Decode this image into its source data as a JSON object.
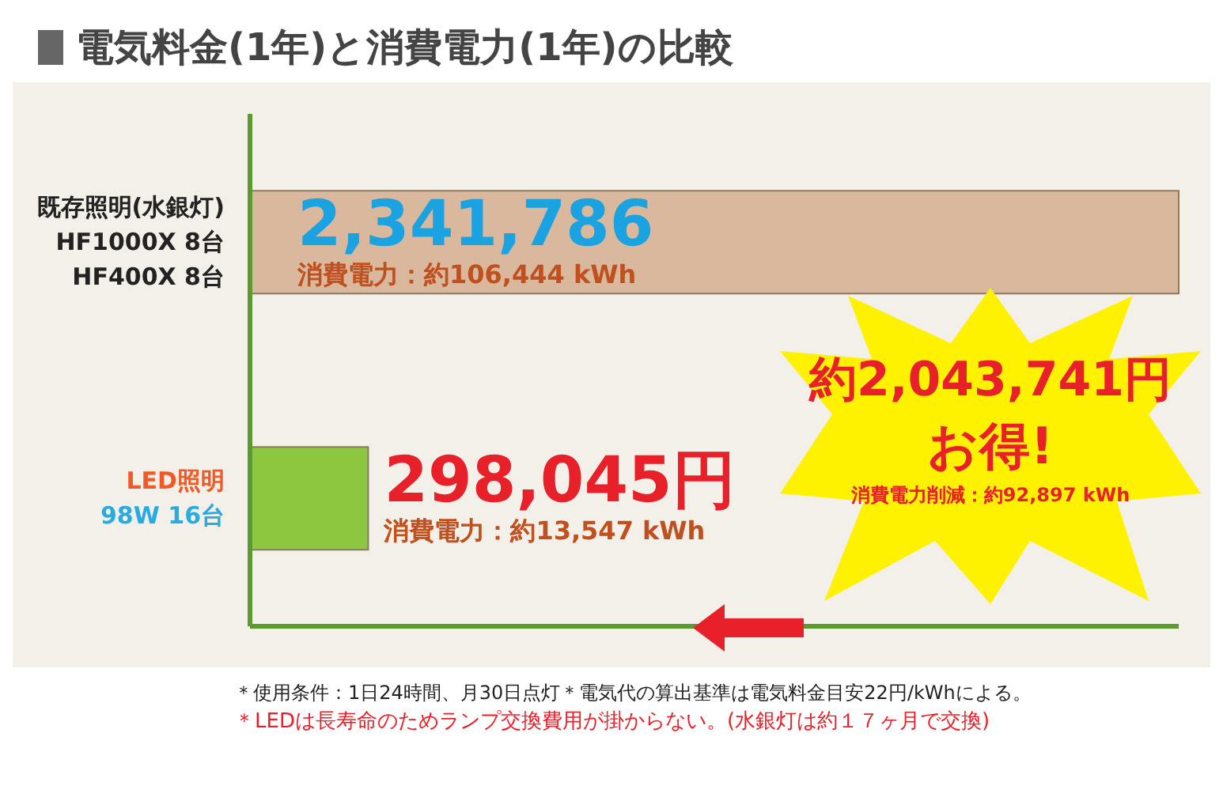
{
  "chart_data": {
    "type": "bar",
    "orientation": "horizontal",
    "title": "電気料金(1年)と消費電力(1年)の比較",
    "categories": [
      "既存照明(水銀灯)\nHF1000X 8台\nHF400X 8台",
      "LED照明\n98W 16台"
    ],
    "values": [
      2341786,
      298045
    ],
    "colors": [
      "#d9b89e",
      "#8dc63f"
    ],
    "value_labels": [
      "2,341,786",
      "298,045円"
    ],
    "annotations": [
      "消費電力：約106,444 kWh",
      "消費電力：約13,547 kWh",
      "約2,043,741円",
      "お得!",
      "消費電力削減：約92,897 kWh",
      "＊使用条件：1日24時間、月30日点灯＊電気代の算出基準は電気料金目安22円/kWhによる。",
      "＊LEDは長寿命のためランプ交換費用が掛からない。(水銀灯は約１７ヶ月で交換)"
    ],
    "grid": false,
    "legend": false
  }
}
